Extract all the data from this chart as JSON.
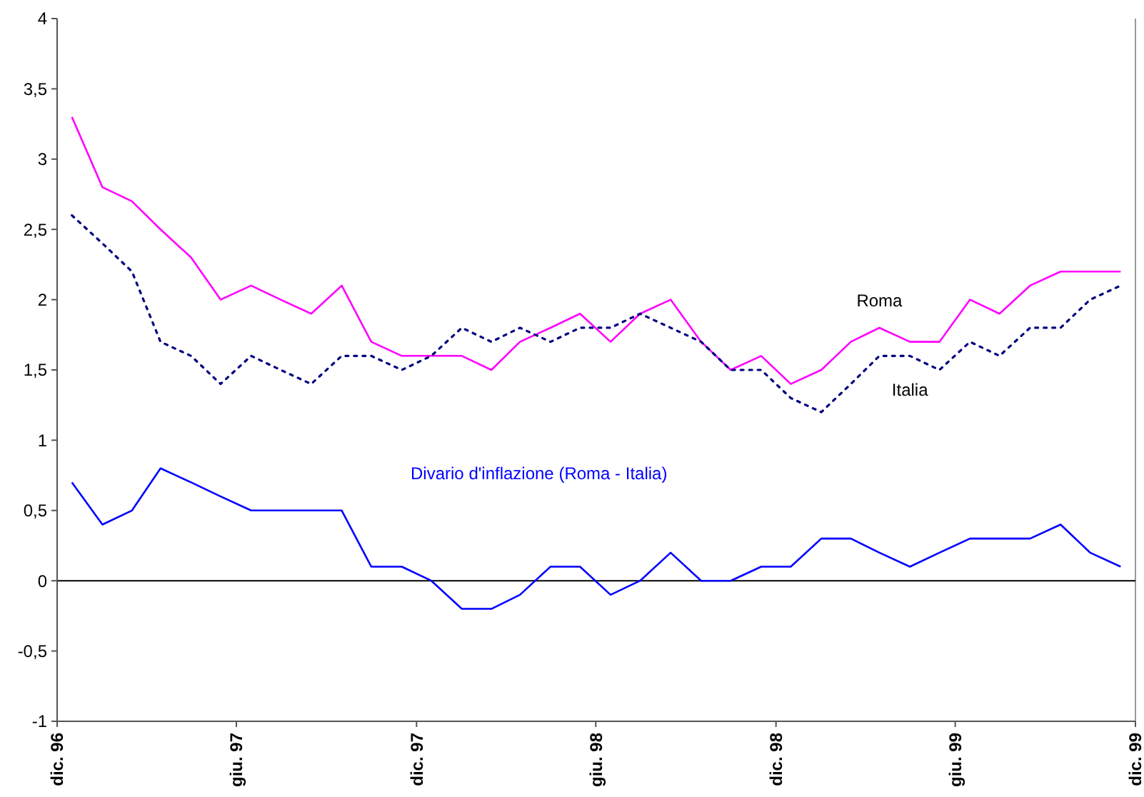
{
  "chart_data": {
    "type": "line",
    "x": [
      "1996-12-16",
      "1997-01-16",
      "1997-02-15",
      "1997-03-16",
      "1997-04-16",
      "1997-05-16",
      "1997-06-16",
      "1997-07-16",
      "1997-08-16",
      "1997-09-16",
      "1997-10-16",
      "1997-11-16",
      "1997-12-16",
      "1998-01-16",
      "1998-02-15",
      "1998-03-16",
      "1998-04-16",
      "1998-05-16",
      "1998-06-16",
      "1998-07-16",
      "1998-08-16",
      "1998-09-16",
      "1998-10-16",
      "1998-11-16",
      "1998-12-16",
      "1999-01-16",
      "1999-02-15",
      "1999-03-16",
      "1999-04-16",
      "1999-05-16",
      "1999-06-16",
      "1999-07-16",
      "1999-08-16",
      "1999-09-16",
      "1999-10-16",
      "1999-11-16"
    ],
    "series": [
      {
        "name": "Roma",
        "color": "#ff00ff",
        "line_style": "solid",
        "values": [
          3.3,
          2.8,
          2.7,
          2.5,
          2.3,
          2.0,
          2.1,
          2.0,
          1.9,
          2.1,
          1.7,
          1.6,
          1.6,
          1.6,
          1.5,
          1.7,
          1.8,
          1.9,
          1.7,
          1.9,
          2.0,
          1.7,
          1.5,
          1.6,
          1.4,
          1.5,
          1.7,
          1.8,
          1.7,
          1.7,
          2.0,
          1.9,
          2.1,
          2.2,
          2.2,
          2.2
        ]
      },
      {
        "name": "Italia",
        "color": "#000080",
        "line_style": "dotted",
        "values": [
          2.6,
          2.4,
          2.2,
          1.7,
          1.6,
          1.4,
          1.6,
          1.5,
          1.4,
          1.6,
          1.6,
          1.5,
          1.6,
          1.8,
          1.7,
          1.8,
          1.7,
          1.8,
          1.8,
          1.9,
          1.8,
          1.7,
          1.5,
          1.5,
          1.3,
          1.2,
          1.4,
          1.6,
          1.6,
          1.5,
          1.7,
          1.6,
          1.8,
          1.8,
          2.0,
          2.1
        ]
      },
      {
        "name": "Divario d'inflazione (Roma - Italia)",
        "color": "#0000ff",
        "line_style": "solid",
        "values": [
          0.7,
          0.4,
          0.5,
          0.8,
          0.7,
          0.6,
          0.5,
          0.5,
          0.5,
          0.5,
          0.1,
          0.1,
          0,
          -0.2,
          -0.2,
          -0.1,
          0.1,
          0.1,
          -0.1,
          0,
          0.2,
          0,
          0,
          0.1,
          0.1,
          0.3,
          0.3,
          0.2,
          0.1,
          0.2,
          0.3,
          0.3,
          0.3,
          0.4,
          0.2,
          0.1
        ]
      }
    ],
    "xlim": [
      "1996-12-01",
      "1999-12-01"
    ],
    "xticks": [
      {
        "value": "1996-12-01",
        "label": "dic. 96"
      },
      {
        "value": "1997-06-01",
        "label": "giu. 97"
      },
      {
        "value": "1997-12-01",
        "label": "dic. 97"
      },
      {
        "value": "1998-06-01",
        "label": "giu. 98"
      },
      {
        "value": "1998-12-01",
        "label": "dic. 98"
      },
      {
        "value": "1999-06-01",
        "label": "giu. 99"
      },
      {
        "value": "1999-12-01",
        "label": "dic. 99"
      }
    ],
    "ylim": [
      -1,
      4
    ],
    "yticks": [
      {
        "value": -1,
        "label": "-1"
      },
      {
        "value": -0.5,
        "label": "-0,5"
      },
      {
        "value": 0,
        "label": "0"
      },
      {
        "value": 0.5,
        "label": "0,5"
      },
      {
        "value": 1,
        "label": "1"
      },
      {
        "value": 1.5,
        "label": "1,5"
      },
      {
        "value": 2,
        "label": "2"
      },
      {
        "value": 2.5,
        "label": "2,5"
      },
      {
        "value": 3,
        "label": "3"
      },
      {
        "value": 3.5,
        "label": "3,5"
      },
      {
        "value": 4,
        "label": "4"
      }
    ],
    "ref_lines": [
      {
        "axis": "y",
        "value": 0,
        "color": "#000000"
      }
    ],
    "grid": false,
    "marker": "none"
  }
}
